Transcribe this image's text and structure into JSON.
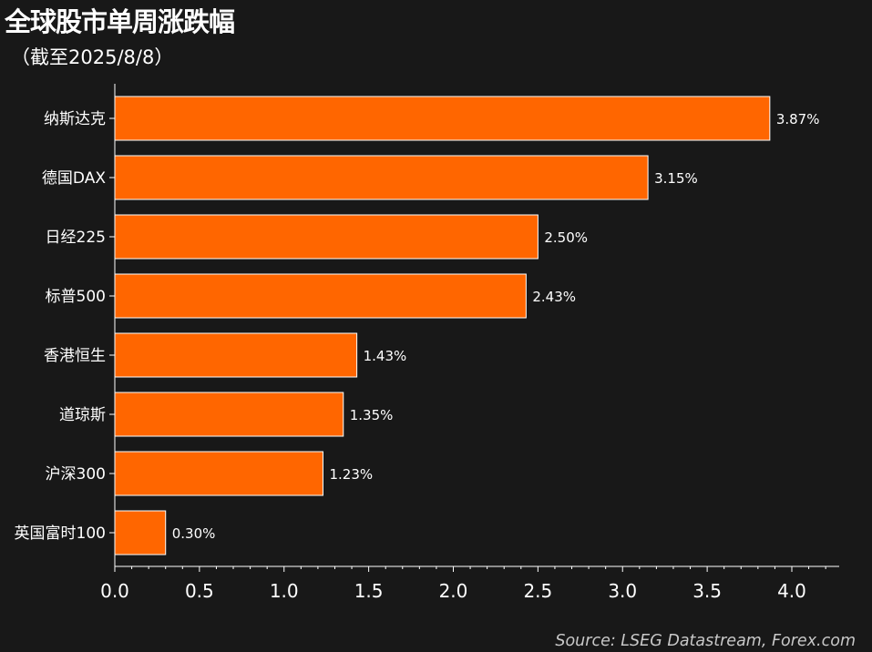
{
  "title": "全球股市单周涨跌幅",
  "subtitle": "（截至2025/8/8）",
  "source": "Source: LSEG Datastream, Forex.com",
  "colors": {
    "background": "#181818",
    "bar": "#ff6600",
    "bar_edge": "#ffffff",
    "text": "#ffffff",
    "axis": "#ffffff"
  },
  "chart_data": {
    "type": "bar",
    "orientation": "horizontal",
    "categories": [
      "纳斯达克",
      "德国DAX",
      "日经225",
      "标普500",
      "香港恒生",
      "道琼斯",
      "沪深300",
      "英国富时100"
    ],
    "values": [
      3.87,
      3.15,
      2.5,
      2.43,
      1.43,
      1.35,
      1.23,
      0.3
    ],
    "value_labels": [
      "3.87%",
      "3.15%",
      "2.50%",
      "2.43%",
      "1.43%",
      "1.35%",
      "1.23%",
      "0.30%"
    ],
    "xlim": [
      0,
      4.28
    ],
    "xticks": [
      0.0,
      0.5,
      1.0,
      1.5,
      2.0,
      2.5,
      3.0,
      3.5,
      4.0
    ],
    "xtick_labels": [
      "0.0",
      "0.5",
      "1.0",
      "1.5",
      "2.0",
      "2.5",
      "3.0",
      "3.5",
      "4.0"
    ],
    "grid": false,
    "legend": "none"
  }
}
